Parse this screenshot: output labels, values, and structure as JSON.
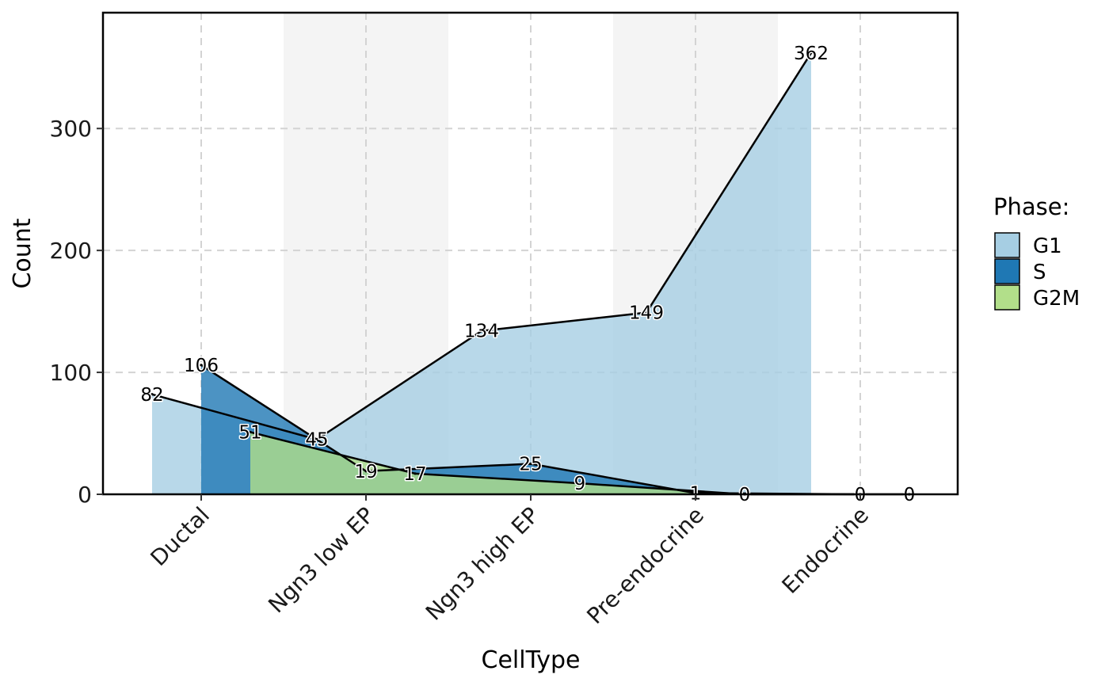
{
  "chart_data": {
    "type": "area",
    "title": "",
    "xlabel": "CellType",
    "ylabel": "Count",
    "categories": [
      "Ductal",
      "Ngn3 low EP",
      "Ngn3 high EP",
      "Pre-endocrine",
      "Endocrine"
    ],
    "y_ticks": [
      0,
      100,
      200,
      300
    ],
    "ylim": [
      0,
      395
    ],
    "grid": true,
    "legend": {
      "title": "Phase:",
      "position": "right"
    },
    "series": [
      {
        "name": "G1",
        "color": "#A6CEE3",
        "values": [
          82,
          45,
          134,
          149,
          362
        ],
        "labels": [
          "82",
          "45",
          "134",
          "149",
          "362"
        ]
      },
      {
        "name": "S",
        "color": "#1F78B4",
        "values": [
          106,
          19,
          25,
          1,
          0
        ],
        "labels": [
          "106",
          "19",
          "25",
          "1",
          "0"
        ]
      },
      {
        "name": "G2M",
        "color": "#B2DF8A",
        "values": [
          51,
          17,
          9,
          0,
          0
        ],
        "labels": [
          "51",
          "17",
          "9",
          "0",
          "0"
        ]
      }
    ]
  }
}
